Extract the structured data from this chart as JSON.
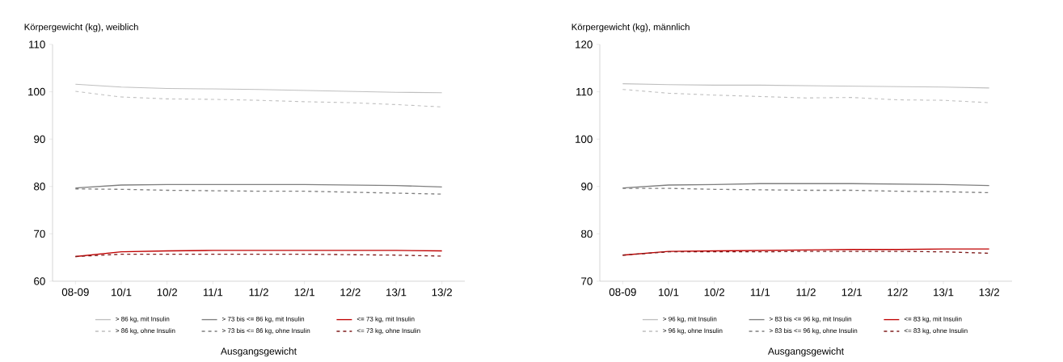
{
  "chart_data": [
    {
      "type": "line",
      "ylabel": "Körpergewicht (kg), weiblich",
      "xlabel": "Ausgangsgewicht",
      "categories": [
        "08-09",
        "10/1",
        "10/2",
        "11/1",
        "11/2",
        "12/1",
        "12/2",
        "13/1",
        "13/2"
      ],
      "ylim": [
        60,
        110
      ],
      "yticks": [
        60,
        70,
        80,
        90,
        100,
        110
      ],
      "legend": "bottom",
      "grid": false,
      "series": [
        {
          "name": "> 86 kg, mit Insulin",
          "color": "#bfbfbf",
          "line_style": "solid",
          "values": [
            101.6,
            101.0,
            100.7,
            100.6,
            100.5,
            100.3,
            100.1,
            99.9,
            99.8
          ]
        },
        {
          "name": "> 73 bis <= 86 kg, mit Insulin",
          "color": "#7f7f7f",
          "line_style": "solid",
          "values": [
            79.7,
            80.3,
            80.4,
            80.4,
            80.4,
            80.4,
            80.3,
            80.2,
            79.9
          ]
        },
        {
          "name": "<= 73 kg, mit Insulin",
          "color": "#c00000",
          "line_style": "solid",
          "values": [
            65.2,
            66.2,
            66.4,
            66.5,
            66.5,
            66.5,
            66.5,
            66.5,
            66.4
          ]
        },
        {
          "name": "> 86 kg, ohne Insulin",
          "color": "#bfbfbf",
          "line_style": "dashed",
          "values": [
            100.1,
            98.9,
            98.5,
            98.4,
            98.2,
            97.9,
            97.7,
            97.3,
            96.8
          ]
        },
        {
          "name": "> 73 bis <= 86 kg, ohne Insulin",
          "color": "#7f7f7f",
          "line_style": "dashed",
          "values": [
            79.5,
            79.4,
            79.2,
            79.1,
            79.0,
            79.0,
            78.8,
            78.6,
            78.4
          ]
        },
        {
          "name": "<= 73 kg, ohne Insulin",
          "color": "#7f1d1d",
          "line_style": "dashed",
          "values": [
            65.2,
            65.7,
            65.7,
            65.7,
            65.7,
            65.7,
            65.6,
            65.5,
            65.3
          ]
        }
      ]
    },
    {
      "type": "line",
      "ylabel": "Körpergewicht (kg), männlich",
      "xlabel": "Ausgangsgewicht",
      "categories": [
        "08-09",
        "10/1",
        "10/2",
        "11/1",
        "11/2",
        "12/1",
        "12/2",
        "13/1",
        "13/2"
      ],
      "ylim": [
        70,
        120
      ],
      "yticks": [
        70,
        80,
        90,
        100,
        110,
        120
      ],
      "legend": "bottom",
      "grid": false,
      "series": [
        {
          "name": "> 96 kg, mit Insulin",
          "color": "#bfbfbf",
          "line_style": "solid",
          "values": [
            111.7,
            111.5,
            111.4,
            111.4,
            111.3,
            111.2,
            111.1,
            111.0,
            110.8
          ]
        },
        {
          "name": "> 83 bis <= 96 kg, mit Insulin",
          "color": "#7f7f7f",
          "line_style": "solid",
          "values": [
            89.7,
            90.3,
            90.4,
            90.6,
            90.6,
            90.6,
            90.5,
            90.4,
            90.2
          ]
        },
        {
          "name": "<= 83 kg, mit Insulin",
          "color": "#c00000",
          "line_style": "solid",
          "values": [
            75.5,
            76.3,
            76.4,
            76.5,
            76.6,
            76.7,
            76.7,
            76.8,
            76.8
          ]
        },
        {
          "name": "> 96 kg, ohne Insulin",
          "color": "#bfbfbf",
          "line_style": "dashed",
          "values": [
            110.5,
            109.7,
            109.3,
            109.0,
            108.7,
            108.8,
            108.3,
            108.2,
            107.7
          ]
        },
        {
          "name": "> 83 bis <= 96 kg, ohne Insulin",
          "color": "#7f7f7f",
          "line_style": "dashed",
          "values": [
            89.6,
            89.6,
            89.4,
            89.3,
            89.2,
            89.2,
            89.0,
            88.9,
            88.7
          ]
        },
        {
          "name": "<= 83 kg, ohne Insulin",
          "color": "#7f1d1d",
          "line_style": "dashed",
          "values": [
            75.5,
            76.2,
            76.2,
            76.2,
            76.3,
            76.3,
            76.3,
            76.2,
            75.9
          ]
        }
      ]
    }
  ]
}
